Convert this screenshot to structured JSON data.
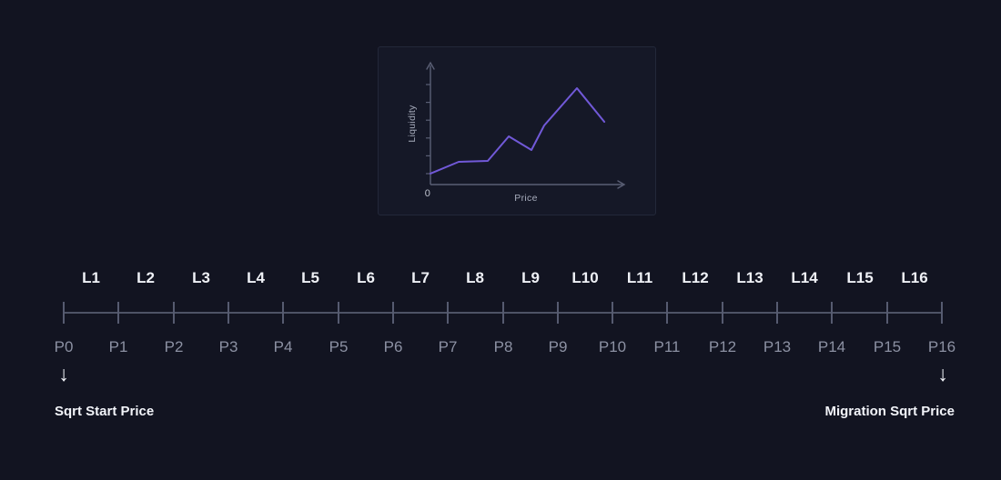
{
  "page": {
    "background": "#121421"
  },
  "chart_card": {
    "background": "#151827",
    "border_color": "#232839"
  },
  "chart_data": {
    "type": "line",
    "title": "",
    "ylabel": "Liquidity",
    "xlabel": "Price",
    "origin_label": "0",
    "y_axis_tick_count": 6,
    "x": [
      0,
      0.146,
      0.296,
      0.404,
      0.521,
      0.587,
      0.756,
      0.897
    ],
    "y": [
      0.1,
      0.207,
      0.215,
      0.438,
      0.314,
      0.537,
      0.876,
      0.57
    ],
    "xlim": [
      0,
      1
    ],
    "ylim": [
      0,
      1
    ],
    "grid": false,
    "legend": false,
    "line_color": "#7159D8",
    "axis_color": "#5A5F75",
    "label_color": "#A7ACBC"
  },
  "ruler": {
    "segment_labels": [
      "L1",
      "L2",
      "L3",
      "L4",
      "L5",
      "L6",
      "L7",
      "L8",
      "L9",
      "L10",
      "L11",
      "L12",
      "L13",
      "L14",
      "L15",
      "L16"
    ],
    "point_labels": [
      "P0",
      "P1",
      "P2",
      "P3",
      "P4",
      "P5",
      "P6",
      "P7",
      "P8",
      "P9",
      "P10",
      "P11",
      "P12",
      "P13",
      "P14",
      "P15",
      "P16"
    ],
    "line_color": "#4E5366",
    "tick_color": "#565B70",
    "segment_label_color": "#EFF1F6",
    "point_label_color": "#8C91A3"
  },
  "markers": {
    "arrow_icon": "↓",
    "start_label": "Sqrt Start Price",
    "end_label": "Migration Sqrt Price",
    "label_color": "#F2F4F9"
  }
}
